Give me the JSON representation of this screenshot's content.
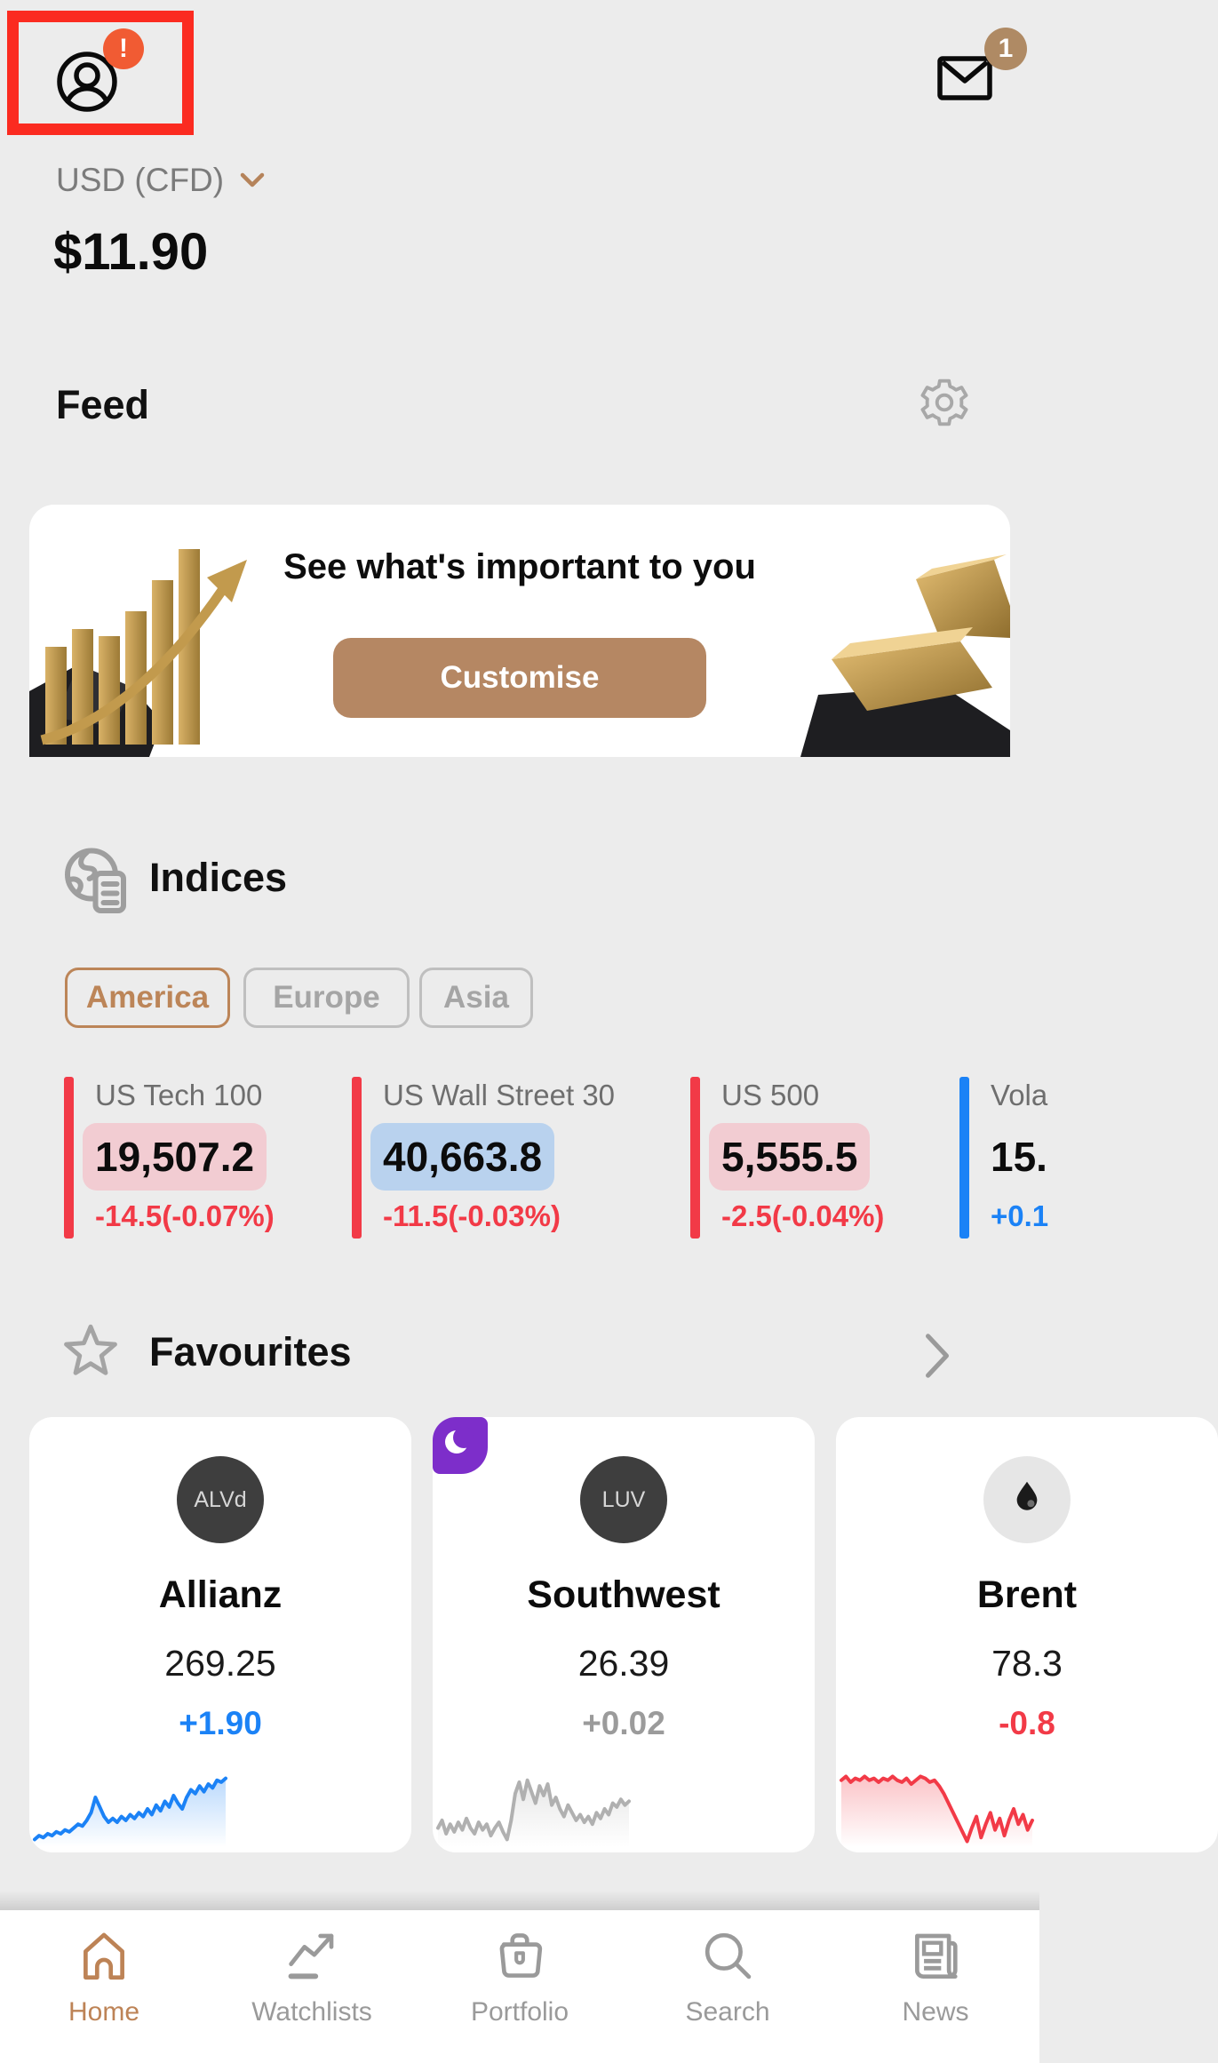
{
  "header": {
    "profile_alert": "!",
    "mail_badge": "1",
    "account_label": "USD (CFD)",
    "balance": "$11.90"
  },
  "feed": {
    "title": "Feed"
  },
  "banner": {
    "title": "See what's important to you",
    "button_label": "Customise"
  },
  "indices": {
    "title": "Indices",
    "tabs": [
      {
        "label": "America",
        "selected": true
      },
      {
        "label": "Europe",
        "selected": false
      },
      {
        "label": "Asia",
        "selected": false
      }
    ],
    "cards": [
      {
        "name": "US Tech 100",
        "value": "19,507.2",
        "change": "-14.5(-0.07%)",
        "bar_color": "#f23a47",
        "chip_color": "#f2ccd2",
        "change_color": "#f23a47"
      },
      {
        "name": "US Wall Street 30",
        "value": "40,663.8",
        "change": "-11.5(-0.03%)",
        "bar_color": "#f23a47",
        "chip_color": "#b9d2ee",
        "change_color": "#f23a47"
      },
      {
        "name": "US 500",
        "value": "5,555.5",
        "change": "-2.5(-0.04%)",
        "bar_color": "#f23a47",
        "chip_color": "#f2ccd2",
        "change_color": "#f23a47"
      },
      {
        "name": "Vola",
        "value": "15.",
        "change": "+0.1",
        "bar_color": "#1b82f6",
        "chip_color": "transparent",
        "change_color": "#1b82f6"
      }
    ]
  },
  "favourites": {
    "title": "Favourites",
    "cards": [
      {
        "ticker": "ALVd",
        "name": "Allianz",
        "price": "269.25",
        "change": "+1.90",
        "change_color": "#1b82f6",
        "line_color": "#1b82f6",
        "night": false,
        "avatar": "ticker",
        "spark": [
          36,
          34,
          35,
          33,
          34,
          32,
          33,
          31,
          32,
          30,
          28,
          29,
          26,
          22,
          14,
          19,
          24,
          27,
          25,
          27,
          24,
          26,
          23,
          25,
          22,
          24,
          20,
          23,
          18,
          21,
          16,
          19,
          13,
          17,
          20,
          14,
          10,
          12,
          8,
          11,
          7,
          9,
          5,
          6,
          4
        ]
      },
      {
        "ticker": "LUV",
        "name": "Southwest",
        "price": "26.39",
        "change": "+0.02",
        "change_color": "#9b9b9b",
        "line_color": "#b0b0b0",
        "night": true,
        "avatar": "ticker",
        "spark": [
          30,
          26,
          33,
          28,
          32,
          27,
          31,
          25,
          30,
          33,
          27,
          31,
          28,
          34,
          30,
          27,
          32,
          36,
          26,
          12,
          6,
          15,
          5,
          11,
          17,
          8,
          13,
          7,
          18,
          14,
          20,
          24,
          18,
          22,
          26,
          23,
          27,
          24,
          28,
          22,
          25,
          20,
          23,
          17,
          19,
          15,
          18,
          16
        ]
      },
      {
        "ticker": "",
        "name": "Brent",
        "price": "78.3",
        "change": "-0.8",
        "change_color": "#f23a47",
        "line_color": "#f23a47",
        "night": false,
        "avatar": "oil-drop",
        "spark": [
          5,
          3,
          6,
          4,
          5,
          3,
          5,
          4,
          6,
          4,
          5,
          3,
          5,
          6,
          4,
          7,
          5,
          3,
          4,
          6,
          5,
          8,
          12,
          17,
          22,
          27,
          32,
          37,
          30,
          24,
          35,
          28,
          22,
          31,
          25,
          34,
          26,
          20,
          28,
          23,
          31,
          26
        ]
      }
    ]
  },
  "nav": {
    "items": [
      {
        "label": "Home",
        "active": true
      },
      {
        "label": "Watchlists",
        "active": false
      },
      {
        "label": "Portfolio",
        "active": false
      },
      {
        "label": "Search",
        "active": false
      },
      {
        "label": "News",
        "active": false
      }
    ]
  },
  "colors": {
    "background": "#ececec",
    "accent_tan": "#bc8558",
    "button_tan": "#b58763",
    "alert_orange": "#f15b33",
    "annotation_red": "#fb2b20",
    "badge_brown": "#af8a64",
    "negative_red": "#f23a47",
    "positive_blue": "#1b82f6",
    "chip_pink": "#f2ccd2",
    "chip_blue": "#b9d2ee",
    "night_purple": "#7d2eca",
    "nav_gray": "#9a9a9a"
  }
}
